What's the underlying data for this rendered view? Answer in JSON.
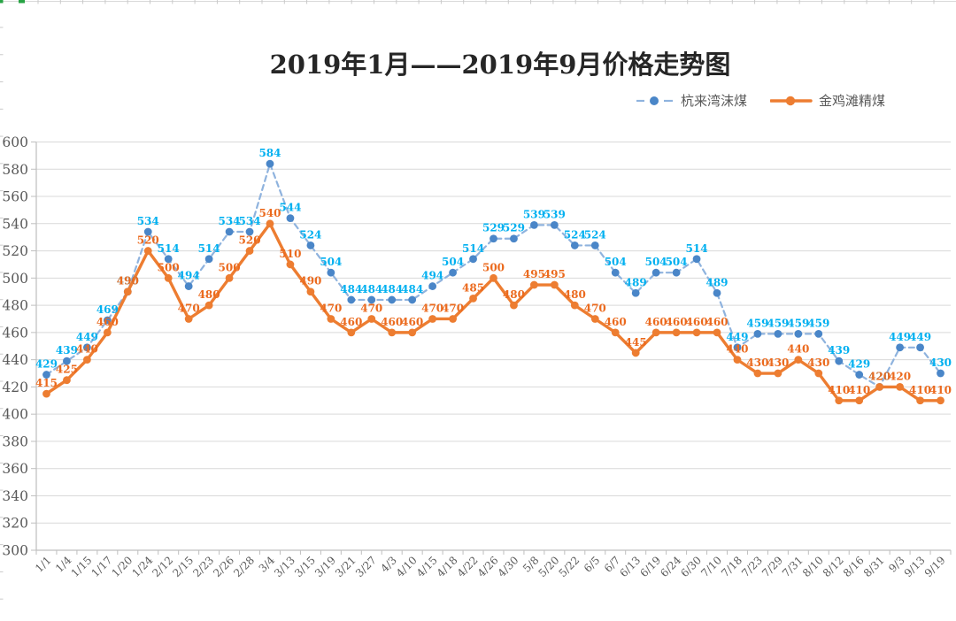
{
  "title": "2019年1月——2019年9月价格走势图",
  "chart_data": {
    "type": "line",
    "title": "2019年1月——2019年9月价格走势图",
    "categories": [
      "1/1",
      "1/4",
      "1/15",
      "1/17",
      "1/20",
      "1/24",
      "2/12",
      "2/15",
      "2/23",
      "2/26",
      "2/28",
      "3/4",
      "3/13",
      "3/15",
      "3/19",
      "3/21",
      "3/27",
      "4/3",
      "4/10",
      "4/15",
      "4/18",
      "4/22",
      "4/26",
      "4/30",
      "5/8",
      "5/20",
      "5/22",
      "6/5",
      "6/7",
      "6/13",
      "6/19",
      "6/24",
      "6/30",
      "7/10",
      "7/18",
      "7/23",
      "7/29",
      "7/31",
      "8/10",
      "8/12",
      "8/16",
      "8/31",
      "9/3",
      "9/13",
      "9/19"
    ],
    "series": [
      {
        "name": "杭来湾沫煤",
        "style": "dashed",
        "line_color": "#8FB3DE",
        "marker_color": "#4A86C8",
        "label_color": "#00B0F0",
        "values": [
          429,
          439,
          449,
          469,
          490,
          534,
          514,
          494,
          514,
          534,
          534,
          584,
          544,
          524,
          504,
          484,
          484,
          484,
          484,
          494,
          504,
          514,
          529,
          529,
          539,
          539,
          524,
          524,
          504,
          489,
          504,
          504,
          514,
          489,
          449,
          459,
          459,
          459,
          459,
          439,
          429,
          420,
          449,
          449,
          430
        ]
      },
      {
        "name": "金鸡滩精煤",
        "style": "solid",
        "line_color": "#ED7D31",
        "marker_color": "#ED7D31",
        "label_color": "#EB6A1E",
        "values": [
          415,
          425,
          440,
          460,
          490,
          520,
          500,
          470,
          480,
          500,
          520,
          540,
          510,
          490,
          470,
          460,
          470,
          460,
          460,
          470,
          470,
          485,
          500,
          480,
          495,
          495,
          480,
          470,
          460,
          445,
          460,
          460,
          460,
          460,
          440,
          430,
          430,
          440,
          430,
          410,
          410,
          420,
          420,
          410,
          410
        ]
      }
    ],
    "ylim": [
      300,
      600
    ],
    "ytick_step": 20,
    "grid": true,
    "legend_position": "top-right",
    "grid_color": "#D9D9D9",
    "axis_color": "#BFBFBF",
    "tick_label_color": "#595959",
    "edge_accent_color": "#27A343"
  }
}
